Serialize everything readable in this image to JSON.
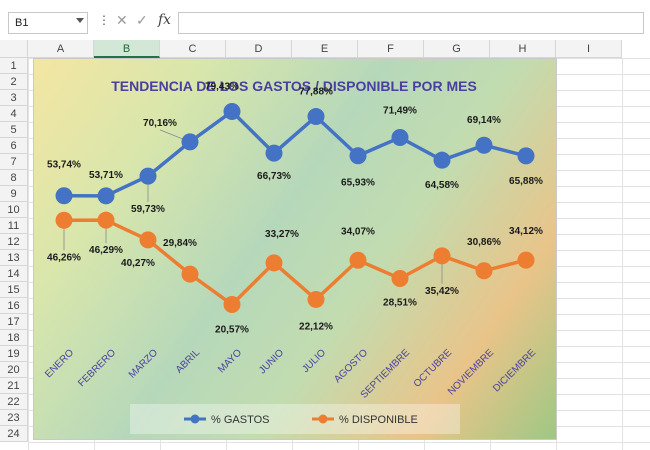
{
  "formula_bar": {
    "name_box": "B1",
    "menu_glyph": "⋮",
    "cancel_glyph": "✕",
    "enter_glyph": "✓",
    "fx_label": "fx",
    "formula_value": ""
  },
  "grid": {
    "columns": [
      "A",
      "B",
      "C",
      "D",
      "E",
      "F",
      "G",
      "H",
      "I"
    ],
    "rows": [
      "1",
      "2",
      "3",
      "4",
      "5",
      "6",
      "7",
      "8",
      "9",
      "10",
      "11",
      "12",
      "13",
      "14",
      "15",
      "16",
      "17",
      "18",
      "19",
      "20",
      "21",
      "22",
      "23",
      "24"
    ],
    "selected_column": "B",
    "selected_cell": "B1"
  },
  "chart_data": {
    "type": "line",
    "title": "TENDENCIA DE LOS GASTOS / DISPONIBLE POR MES",
    "categories": [
      "ENERO",
      "FEBRERO",
      "MARZO",
      "ABRIL",
      "MAYO",
      "JUNIO",
      "JULIO",
      "AGOSTO",
      "SEPTIEMBRE",
      "OCTUBRE",
      "NOVIEMBRE",
      "DICIEMBRE"
    ],
    "ylim": [
      0,
      100
    ],
    "grid": false,
    "legend_position": "bottom",
    "series": [
      {
        "name": "% GASTOS",
        "color": "#4472c4",
        "values": [
          53.74,
          53.71,
          59.73,
          70.16,
          79.43,
          66.73,
          77.88,
          65.93,
          71.49,
          64.58,
          69.14,
          65.88
        ],
        "labels": [
          "53,74%",
          "53,71%",
          "59,73%",
          "70,16%",
          "79,43%",
          "66,73%",
          "77,88%",
          "65,93%",
          "71,49%",
          "64,58%",
          "69,14%",
          "65,88%"
        ]
      },
      {
        "name": "% DISPONIBLE",
        "color": "#ed7d31",
        "values": [
          46.26,
          46.29,
          40.27,
          29.84,
          20.57,
          33.27,
          22.12,
          34.07,
          28.51,
          35.42,
          30.86,
          34.12
        ],
        "labels": [
          "46,26%",
          "46,29%",
          "40,27%",
          "29,84%",
          "20,57%",
          "33,27%",
          "22,12%",
          "34,07%",
          "28,51%",
          "35,42%",
          "30,86%",
          "34,12%"
        ]
      }
    ]
  }
}
